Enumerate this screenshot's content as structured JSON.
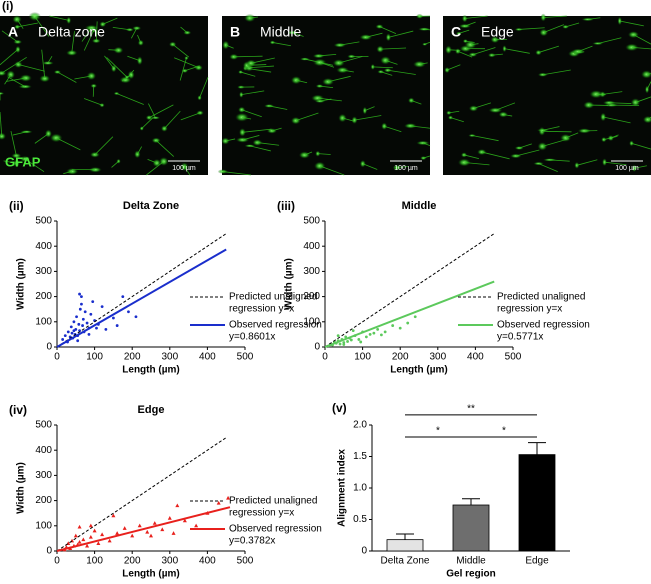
{
  "figure_label": "(i)",
  "stain": "GFAP",
  "images": [
    {
      "letter": "A",
      "title": "Delta zone",
      "scale": "100 µm"
    },
    {
      "letter": "B",
      "title": "Middle",
      "scale": "100 µm"
    },
    {
      "letter": "C",
      "title": "Edge",
      "scale": "100 µm"
    }
  ],
  "chart_data": [
    {
      "type": "scatter",
      "panel": "(ii)",
      "title": "Delta Zone",
      "xlabel": "Length (µm)",
      "ylabel": "Width (µm)",
      "xlim": [
        0,
        500
      ],
      "ylim": [
        0,
        500
      ],
      "xticks": [
        0,
        100,
        200,
        300,
        400,
        500
      ],
      "yticks": [
        0,
        100,
        200,
        300,
        400,
        500
      ],
      "marker": "circle",
      "series": [
        {
          "color": "#1a2ecc",
          "x": [
            15,
            22,
            28,
            30,
            35,
            38,
            40,
            42,
            45,
            48,
            50,
            52,
            55,
            58,
            60,
            62,
            65,
            68,
            70,
            72,
            75,
            80,
            85,
            90,
            95,
            100,
            110,
            120,
            130,
            150,
            160,
            175,
            190,
            210,
            60,
            55,
            45,
            85,
            65,
            105
          ],
          "values": [
            30,
            45,
            20,
            60,
            40,
            80,
            55,
            35,
            100,
            50,
            70,
            120,
            45,
            90,
            65,
            150,
            200,
            85,
            110,
            60,
            140,
            95,
            75,
            130,
            180,
            105,
            90,
            160,
            70,
            115,
            85,
            200,
            140,
            120,
            210,
            25,
            65,
            50,
            170,
            75
          ]
        }
      ],
      "fits": [
        {
          "name_lines": [
            "Predicted unaligned",
            "regression y=x"
          ],
          "color": "#000000",
          "dash": true,
          "slope": 1,
          "x": [
            0,
            450
          ]
        },
        {
          "name_lines": [
            "Observed regression",
            "y=0.8601x"
          ],
          "color": "#1a2ecc",
          "dash": false,
          "slope": 0.8601,
          "x": [
            0,
            450
          ]
        }
      ]
    },
    {
      "type": "scatter",
      "panel": "(iii)",
      "title": "Middle",
      "xlabel": "Length (µm)",
      "ylabel": "Width (µm)",
      "xlim": [
        0,
        500
      ],
      "ylim": [
        0,
        500
      ],
      "xticks": [
        0,
        100,
        200,
        300,
        400,
        500
      ],
      "yticks": [
        0,
        100,
        200,
        300,
        400,
        500
      ],
      "marker": "circle",
      "series": [
        {
          "color": "#5cc95c",
          "x": [
            10,
            15,
            20,
            25,
            30,
            35,
            40,
            45,
            50,
            55,
            60,
            65,
            70,
            80,
            90,
            100,
            110,
            120,
            130,
            140,
            150,
            160,
            180,
            200,
            220,
            240,
            35,
            50,
            75,
            95
          ],
          "values": [
            5,
            10,
            8,
            20,
            15,
            25,
            12,
            30,
            18,
            40,
            22,
            35,
            28,
            45,
            30,
            60,
            40,
            50,
            55,
            70,
            48,
            60,
            85,
            75,
            95,
            120,
            45,
            10,
            65,
            20
          ]
        }
      ],
      "fits": [
        {
          "name_lines": [
            "Predicted unaligned",
            "regression y=x"
          ],
          "color": "#000000",
          "dash": true,
          "slope": 1,
          "x": [
            0,
            450
          ]
        },
        {
          "name_lines": [
            "Observed regression",
            "y=0.5771x"
          ],
          "color": "#5cc95c",
          "dash": false,
          "slope": 0.5771,
          "x": [
            0,
            450
          ]
        }
      ]
    },
    {
      "type": "scatter",
      "panel": "(iv)",
      "title": "Edge",
      "xlabel": "Length (µm)",
      "ylabel": "Width (µm)",
      "xlim": [
        0,
        500
      ],
      "ylim": [
        0,
        500
      ],
      "xticks": [
        0,
        100,
        200,
        300,
        400,
        500
      ],
      "yticks": [
        0,
        100,
        200,
        300,
        400,
        500
      ],
      "marker": "triangle",
      "series": [
        {
          "color": "#e8201c",
          "x": [
            20,
            25,
            30,
            35,
            40,
            45,
            50,
            55,
            60,
            70,
            80,
            90,
            100,
            110,
            120,
            140,
            160,
            180,
            200,
            220,
            240,
            260,
            280,
            300,
            320,
            340,
            370,
            400,
            430,
            455,
            60,
            90,
            150,
            250,
            310
          ],
          "values": [
            5,
            15,
            30,
            10,
            40,
            20,
            60,
            25,
            35,
            45,
            20,
            55,
            80,
            30,
            65,
            40,
            70,
            90,
            60,
            100,
            75,
            110,
            85,
            130,
            180,
            120,
            100,
            150,
            190,
            210,
            95,
            100,
            140,
            60,
            70
          ]
        }
      ],
      "fits": [
        {
          "name_lines": [
            "Predicted unaligned",
            "regression y=x"
          ],
          "color": "#000000",
          "dash": true,
          "slope": 1,
          "x": [
            0,
            450
          ]
        },
        {
          "name_lines": [
            "Observed regression",
            "y=0.3782x"
          ],
          "color": "#e8201c",
          "dash": false,
          "slope": 0.3782,
          "x": [
            0,
            460
          ]
        }
      ]
    },
    {
      "type": "bar",
      "panel": "(v)",
      "xlabel": "Gel region",
      "ylabel": "Alignment index",
      "categories": [
        "Delta Zone",
        "Middle",
        "Edge"
      ],
      "values": [
        0.18,
        0.73,
        1.53
      ],
      "errors": [
        0.09,
        0.1,
        0.19
      ],
      "colors": [
        "#e3e3e3",
        "#6e6e6e",
        "#000000"
      ],
      "ylim": [
        0,
        2
      ],
      "yticks": [
        0,
        {
          "value": 0.5,
          "label": "0.5"
        },
        {
          "value": 1,
          "label": "1.0"
        },
        {
          "value": 1.5,
          "label": "1.5"
        },
        {
          "value": 2,
          "label": "2.0"
        }
      ],
      "significance": [
        {
          "label": "**",
          "from": 0,
          "to": 2,
          "y": 2.16
        },
        {
          "label": "*",
          "from": 0,
          "to": 1,
          "y": 1.81
        },
        {
          "label": "*",
          "from": 1,
          "to": 2,
          "y": 1.81
        }
      ]
    }
  ]
}
